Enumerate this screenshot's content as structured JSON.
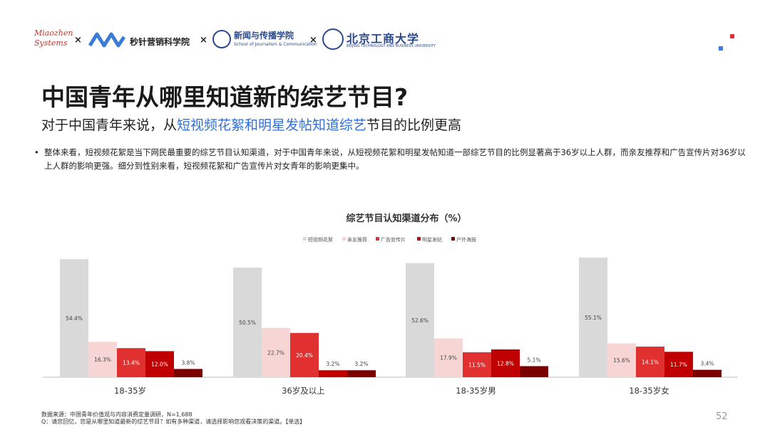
{
  "logos": {
    "miaozhen_line1": "Miaozhen",
    "miaozhen_line2": "Systems",
    "times": "×",
    "miaozhen_label": "秒针营销科学院",
    "school_name": "新闻与传播学院",
    "school_sub": "School of Journalism & Communication",
    "univ_name": "北京工商大学",
    "univ_sub": "BEIJING TECHNOLOGY AND BUSINESS UNIVERSITY"
  },
  "colors": {
    "accent_red": "#e03030",
    "accent_blue": "#3a7bd5",
    "highlight": "#2f6fd8"
  },
  "title": "中国青年从哪里知道新的综艺节目?",
  "subtitle": {
    "pre": "对于中国青年来说，从",
    "highlight": "短视频花絮和明星发帖知道综艺",
    "post": "节目的比例更高"
  },
  "bullet": {
    "marker": "•",
    "text": "整体来看，短视频花絮是当下网民最重要的综艺节目认知渠道，对于中国青年来说，从短视频花絮和明星发帖知道一部综艺节目的比例显著高于36岁以上人群，而亲友推荐和广告宣传片对36岁以上人群的影响更强。细分到性别来看，短视频花絮和广告宣传片对女青年的影响更集中。"
  },
  "chart_data": {
    "type": "bar",
    "title": "综艺节目认知渠道分布（%）",
    "categories": [
      "18-35岁",
      "36岁及以上",
      "18-35岁男",
      "18-35岁女"
    ],
    "series": [
      {
        "name": "短视频花絮",
        "color": "#d9d9d9",
        "values": [
          54.4,
          50.5,
          52.6,
          55.1
        ]
      },
      {
        "name": "亲友推荐",
        "color": "#f8d5d5",
        "values": [
          16.3,
          22.7,
          17.9,
          15.6
        ]
      },
      {
        "name": "广告宣传片",
        "color": "#e03030",
        "values": [
          13.4,
          20.4,
          11.5,
          14.1
        ]
      },
      {
        "name": "明星发帖",
        "color": "#c00000",
        "values": [
          12.0,
          3.2,
          12.8,
          11.7
        ]
      },
      {
        "name": "户外海报",
        "color": "#7b0000",
        "values": [
          3.8,
          3.2,
          5.1,
          3.4
        ]
      }
    ],
    "labels": [
      [
        "54.4%",
        "16.3%",
        "13.4%",
        "12.0%",
        "3.8%"
      ],
      [
        "50.5%",
        "22.7%",
        "20.4%",
        "3.2%",
        "3.2%"
      ],
      [
        "52.6%",
        "17.9%",
        "11.5%",
        "12.8%",
        "5.1%"
      ],
      [
        "55.1%",
        "15.6%",
        "14.1%",
        "11.7%",
        "3.4%"
      ]
    ],
    "ylim": [
      0,
      55.1
    ],
    "legend_position": "top-center",
    "grid": false
  },
  "footer": {
    "line1": "数据来源：中国青年价值观与内容消费定量调研，N=1,688",
    "line2": "Q：请您回忆，您是从哪里知道最新的综艺节目？如有多种渠道，请选择影响您观看决策的渠道。【单选】"
  },
  "page_number": "52"
}
